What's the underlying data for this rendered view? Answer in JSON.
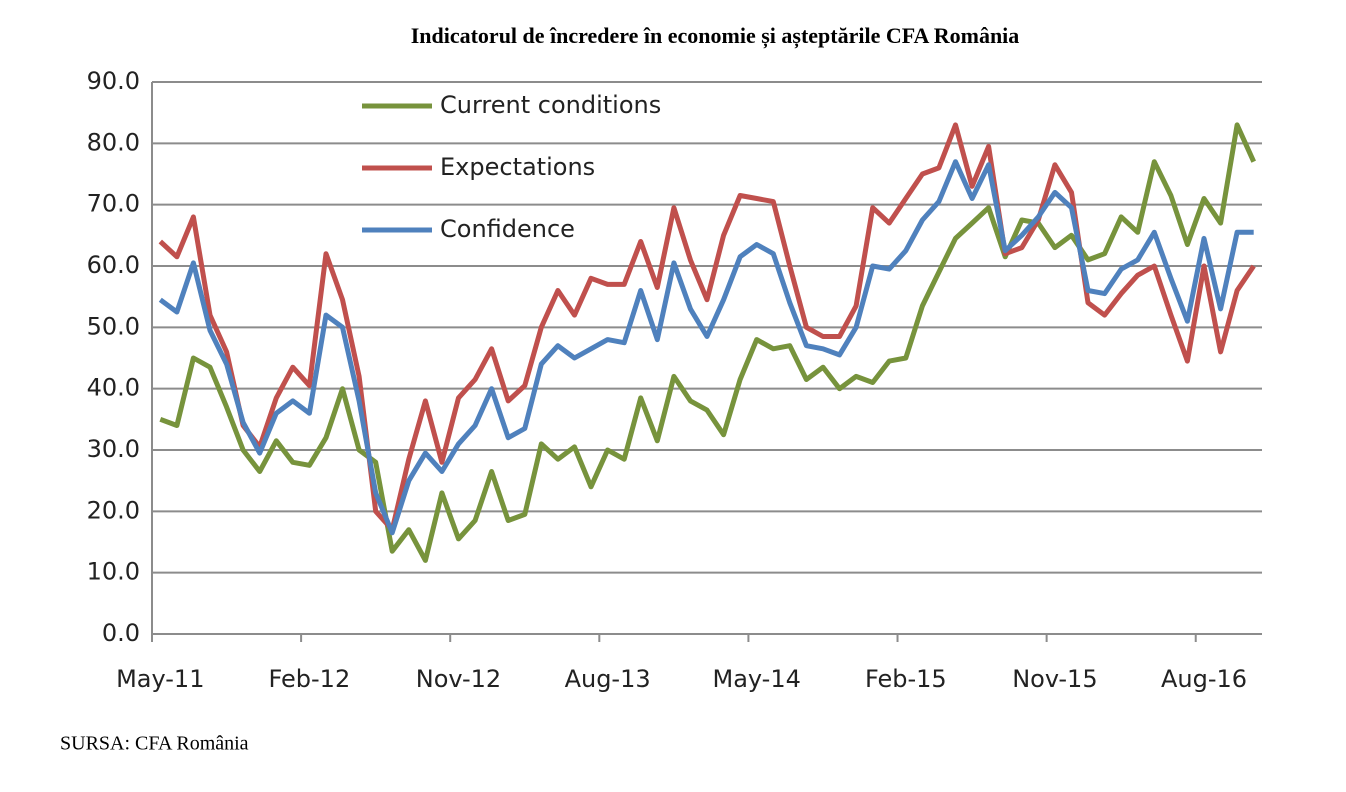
{
  "chart_data": {
    "type": "line",
    "title": "Indicatorul de încredere în economie și așteptările CFA România",
    "source": "SURSA: CFA România",
    "categories": [
      "May-11",
      null,
      null,
      null,
      null,
      null,
      null,
      null,
      null,
      "Feb-12",
      null,
      null,
      null,
      null,
      null,
      null,
      null,
      null,
      "Nov-12",
      null,
      null,
      null,
      null,
      null,
      null,
      null,
      null,
      "Aug-13",
      null,
      null,
      null,
      null,
      null,
      null,
      null,
      null,
      "May-14",
      null,
      null,
      null,
      null,
      null,
      null,
      null,
      null,
      "Feb-15",
      null,
      null,
      null,
      null,
      null,
      null,
      null,
      null,
      "Nov-15",
      null,
      null,
      null,
      null,
      null,
      null,
      null,
      null,
      "Aug-16",
      null,
      null,
      null
    ],
    "series": [
      {
        "name": "Current conditions",
        "color": "#77933c",
        "values": [
          35,
          34,
          45,
          43.5,
          37,
          30,
          26.5,
          31.5,
          28,
          27.5,
          32,
          40,
          30,
          28,
          13.5,
          17,
          12,
          23,
          15.5,
          18.5,
          26.5,
          18.5,
          19.5,
          31,
          28.5,
          30.5,
          24,
          30,
          28.5,
          38.5,
          31.5,
          42,
          38,
          36.5,
          32.5,
          41.5,
          48,
          46.5,
          47,
          41.5,
          43.5,
          40,
          42,
          41,
          44.5,
          45,
          53.5,
          59,
          64.5,
          67,
          69.5,
          61.5,
          67.5,
          67,
          63,
          65,
          61,
          62,
          68,
          65.5,
          77,
          71.5,
          63.5,
          71,
          67,
          83,
          77
        ]
      },
      {
        "name": "Expectations",
        "color": "#c0504d",
        "values": [
          64,
          61.5,
          68,
          52,
          46,
          34,
          30.5,
          38.5,
          43.5,
          40.5,
          62,
          54.5,
          42,
          20,
          17,
          28.5,
          38,
          28,
          38.5,
          41.5,
          46.5,
          38,
          40.5,
          50,
          56,
          52,
          58,
          57,
          57,
          64,
          56.5,
          69.5,
          61,
          54.5,
          65,
          71.5,
          71,
          70.5,
          60,
          50,
          48.5,
          48.5,
          53.5,
          69.5,
          67,
          71,
          75,
          76,
          83,
          73,
          79.5,
          62,
          63,
          67.5,
          76.5,
          72,
          54,
          52,
          55.5,
          58.5,
          60,
          52,
          44.5,
          60,
          46,
          56,
          60
        ]
      },
      {
        "name": "Confidence",
        "color": "#4f81bd",
        "values": [
          54.5,
          52.5,
          60.5,
          49.5,
          44,
          34.5,
          29.5,
          36,
          38,
          36,
          52,
          50,
          38,
          23,
          16.5,
          25,
          29.5,
          26.5,
          31,
          34,
          40,
          32,
          33.5,
          44,
          47,
          45,
          46.5,
          48,
          47.5,
          56,
          48,
          60.5,
          53,
          48.5,
          54.5,
          61.5,
          63.5,
          62,
          54,
          47,
          46.5,
          45.5,
          50,
          60,
          59.5,
          62.5,
          67.5,
          70.5,
          77,
          71,
          76.5,
          62.5,
          65,
          68,
          72,
          69.5,
          56,
          55.5,
          59.5,
          61,
          65.5,
          58,
          51,
          64.5,
          53,
          65.5,
          65.5
        ]
      }
    ],
    "ylim": [
      0,
      90
    ],
    "yticks": [
      {
        "value": 0,
        "label": "0.0"
      },
      {
        "value": 10,
        "label": "10.0"
      },
      {
        "value": 20,
        "label": "20.0"
      },
      {
        "value": 30,
        "label": "30.0"
      },
      {
        "value": 40,
        "label": "40.0"
      },
      {
        "value": 50,
        "label": "50.0"
      },
      {
        "value": 60,
        "label": "60.0"
      },
      {
        "value": 70,
        "label": "70.0"
      },
      {
        "value": 80,
        "label": "80.0"
      },
      {
        "value": 90,
        "label": "90.0"
      }
    ],
    "grid": true,
    "legend": "upper left"
  }
}
